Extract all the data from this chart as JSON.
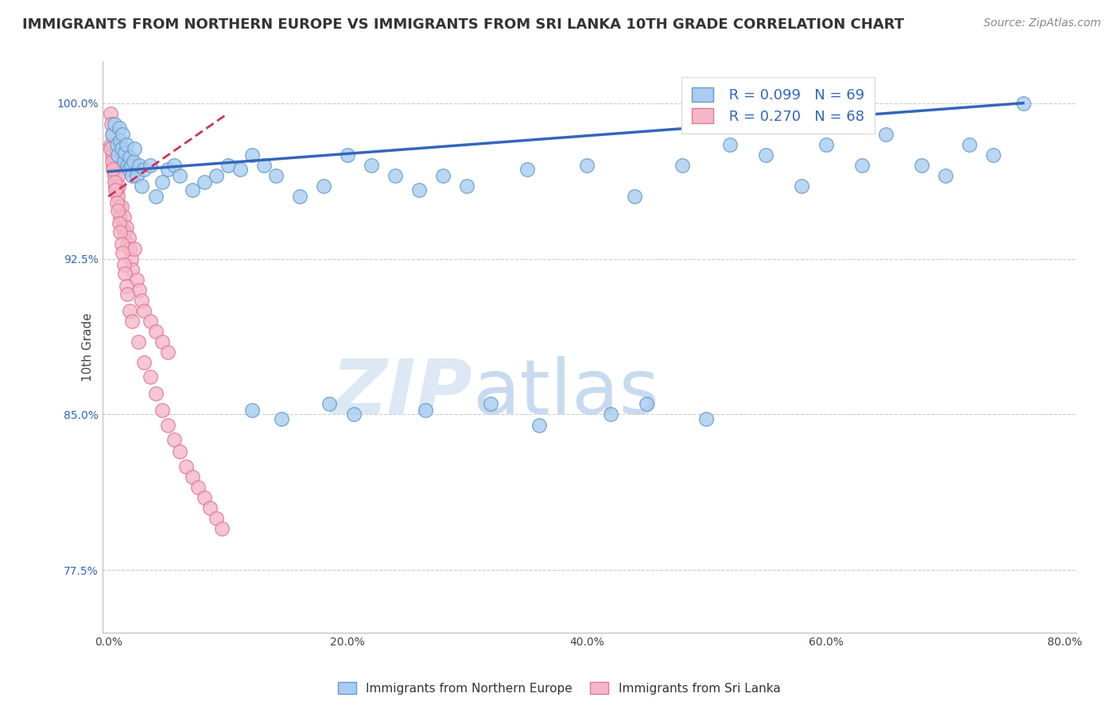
{
  "title": "IMMIGRANTS FROM NORTHERN EUROPE VS IMMIGRANTS FROM SRI LANKA 10TH GRADE CORRELATION CHART",
  "source": "Source: ZipAtlas.com",
  "xlabel_ticks": [
    "0.0%",
    "20.0%",
    "40.0%",
    "60.0%",
    "80.0%"
  ],
  "xlabel_vals": [
    0.0,
    20.0,
    40.0,
    60.0,
    80.0
  ],
  "ylabel_ticks": [
    "77.5%",
    "85.0%",
    "92.5%",
    "100.0%"
  ],
  "ylabel_vals": [
    77.5,
    85.0,
    92.5,
    100.0
  ],
  "ylim": [
    74.5,
    102.0
  ],
  "xlim": [
    -0.5,
    81.0
  ],
  "ylabel": "10th Grade",
  "legend_blue_r": "R = 0.099",
  "legend_blue_n": "N = 69",
  "legend_pink_r": "R = 0.270",
  "legend_pink_n": "N = 68",
  "blue_color": "#a8cdf0",
  "pink_color": "#f5b8c8",
  "blue_edge": "#6699cc",
  "pink_edge": "#dd7799",
  "trend_blue": "#3366bb",
  "trend_pink": "#cc3355",
  "blue_trend_x": [
    0.0,
    76.5
  ],
  "blue_trend_y": [
    96.7,
    100.0
  ],
  "pink_trend_x": [
    0.0,
    10.0
  ],
  "pink_trend_y": [
    95.5,
    99.5
  ],
  "watermark_zip": "ZIP",
  "watermark_atlas": "atlas",
  "watermark_color": "#dde8f5",
  "grid_color": "#cccccc",
  "bg_color": "#ffffff",
  "title_fontsize": 13,
  "axis_label_fontsize": 11,
  "tick_fontsize": 10,
  "legend_fontsize": 13,
  "source_fontsize": 10,
  "blue_x": [
    0.3,
    0.5,
    0.7,
    0.8,
    0.9,
    1.0,
    1.1,
    1.2,
    1.3,
    1.4,
    1.5,
    1.6,
    1.7,
    1.8,
    1.9,
    2.0,
    2.1,
    2.2,
    2.4,
    2.6,
    2.8,
    3.0,
    3.5,
    4.0,
    4.5,
    5.0,
    5.5,
    6.0,
    7.0,
    8.0,
    9.0,
    10.0,
    11.0,
    12.0,
    13.0,
    14.0,
    16.0,
    18.0,
    20.0,
    22.0,
    24.0,
    26.0,
    28.0,
    30.0,
    35.0,
    40.0,
    44.0,
    48.0,
    52.0,
    55.0,
    58.0,
    60.0,
    63.0,
    65.0,
    68.0,
    70.0,
    72.0,
    74.0,
    76.5,
    12.0,
    14.5,
    18.5,
    20.5,
    26.5,
    32.0,
    36.0,
    42.0,
    45.0,
    50.0
  ],
  "blue_y": [
    98.5,
    99.0,
    98.0,
    97.5,
    98.8,
    98.2,
    97.8,
    98.5,
    97.2,
    97.6,
    98.0,
    97.0,
    96.8,
    97.4,
    97.0,
    96.5,
    97.2,
    97.8,
    96.5,
    97.0,
    96.0,
    96.8,
    97.0,
    95.5,
    96.2,
    96.8,
    97.0,
    96.5,
    95.8,
    96.2,
    96.5,
    97.0,
    96.8,
    97.5,
    97.0,
    96.5,
    95.5,
    96.0,
    97.5,
    97.0,
    96.5,
    95.8,
    96.5,
    96.0,
    96.8,
    97.0,
    95.5,
    97.0,
    98.0,
    97.5,
    96.0,
    98.0,
    97.0,
    98.5,
    97.0,
    96.5,
    98.0,
    97.5,
    100.0,
    85.2,
    84.8,
    85.5,
    85.0,
    85.2,
    85.5,
    84.5,
    85.0,
    85.5,
    84.8
  ],
  "pink_x": [
    0.15,
    0.2,
    0.25,
    0.3,
    0.35,
    0.4,
    0.45,
    0.5,
    0.55,
    0.6,
    0.65,
    0.7,
    0.75,
    0.8,
    0.85,
    0.9,
    1.0,
    1.1,
    1.2,
    1.3,
    1.4,
    1.5,
    1.6,
    1.7,
    1.8,
    1.9,
    2.0,
    2.2,
    2.4,
    2.6,
    2.8,
    3.0,
    3.5,
    4.0,
    4.5,
    5.0,
    0.2,
    0.3,
    0.4,
    0.5,
    0.6,
    0.7,
    0.8,
    0.9,
    1.0,
    1.1,
    1.2,
    1.3,
    1.4,
    1.5,
    1.6,
    1.8,
    2.0,
    2.5,
    3.0,
    3.5,
    4.0,
    4.5,
    5.0,
    5.5,
    6.0,
    6.5,
    7.0,
    7.5,
    8.0,
    8.5,
    9.0,
    9.5
  ],
  "pink_y": [
    99.5,
    98.0,
    99.0,
    97.5,
    98.5,
    97.0,
    98.0,
    96.5,
    97.5,
    96.0,
    97.2,
    95.8,
    96.5,
    95.5,
    96.0,
    95.0,
    94.5,
    95.0,
    94.0,
    94.5,
    93.8,
    94.0,
    93.2,
    93.5,
    93.0,
    92.5,
    92.0,
    93.0,
    91.5,
    91.0,
    90.5,
    90.0,
    89.5,
    89.0,
    88.5,
    88.0,
    97.8,
    97.2,
    96.8,
    96.2,
    95.8,
    95.2,
    94.8,
    94.2,
    93.8,
    93.2,
    92.8,
    92.2,
    91.8,
    91.2,
    90.8,
    90.0,
    89.5,
    88.5,
    87.5,
    86.8,
    86.0,
    85.2,
    84.5,
    83.8,
    83.2,
    82.5,
    82.0,
    81.5,
    81.0,
    80.5,
    80.0,
    79.5
  ]
}
